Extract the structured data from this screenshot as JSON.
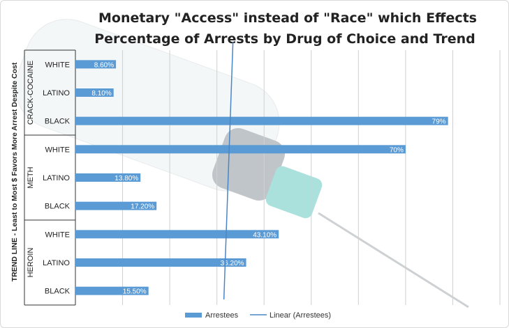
{
  "chart_data": {
    "type": "bar",
    "orientation": "horizontal",
    "title": "Monetary \"Access\" instead of \"Race\" which Effects Percentage of Arrests by Drug of Choice and Trend",
    "title_lines": [
      "Monetary \"Access\" instead of \"Race\" which Effects",
      "Percentage of Arrests by Drug of Choice and Trend"
    ],
    "ylabel": "TREND LINE - Least  to Most $ Favors More  Arrest  Despite Cost",
    "groups": [
      {
        "name": "CRACK-COCAINE",
        "categories": [
          "WHITE",
          "LATINO",
          "BLACK"
        ]
      },
      {
        "name": "METH",
        "categories": [
          "WHITE",
          "LATINO",
          "BLACK"
        ]
      },
      {
        "name": "HEROIN",
        "categories": [
          "WHITE",
          "LATINO",
          "BLACK"
        ]
      }
    ],
    "series": [
      {
        "name": "Arrestees",
        "values": [
          8.6,
          8.1,
          79,
          70,
          13.8,
          17.2,
          43.1,
          36.2,
          15.5
        ],
        "labels": [
          "8.60%",
          "8.10%",
          "79%",
          "70%",
          "13.80%",
          "17.20%",
          "43.10%",
          "36.20%",
          "15.50%"
        ]
      }
    ],
    "trendline": {
      "name": "Linear (Arrestees)",
      "type": "linear"
    },
    "xlim": [
      0,
      90
    ],
    "grid": true,
    "legend": "bottom",
    "colors": {
      "bar": "#5b9bd5",
      "trend": "#4a86c5",
      "grid": "#d0d0d0",
      "axis": "#333333"
    }
  }
}
